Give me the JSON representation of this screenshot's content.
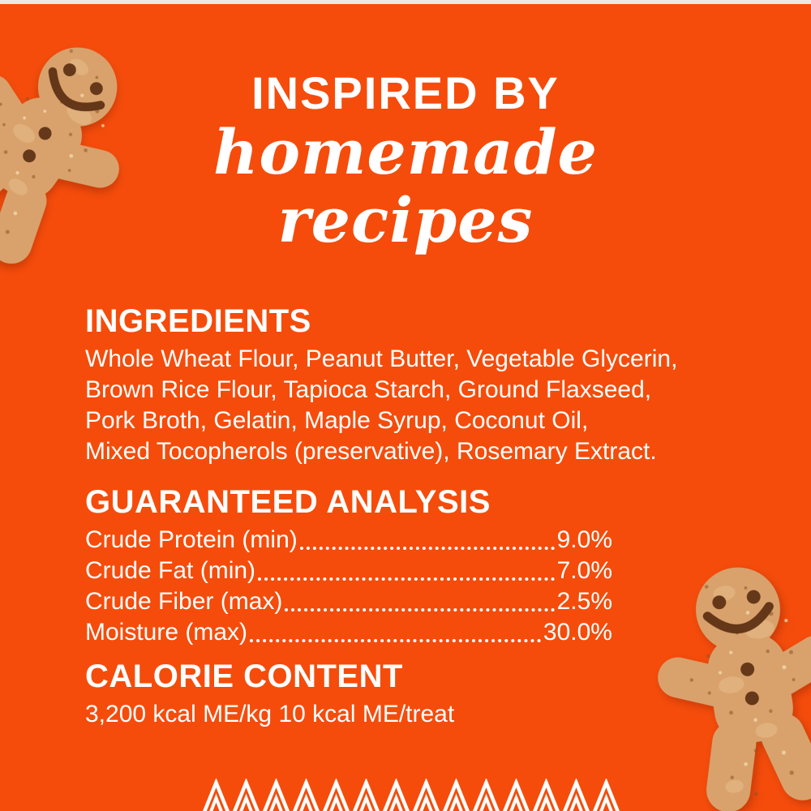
{
  "panel": {
    "background_color": "#F54C0B",
    "top_edge_color": "#ECE9E2",
    "text_color": "#FFFFFF"
  },
  "tagline": {
    "line1": "INSPIRED BY",
    "line2": "homemade",
    "line3": "recipes"
  },
  "ingredients": {
    "heading": "INGREDIENTS",
    "lines": [
      "Whole Wheat Flour, Peanut Butter, Vegetable Glycerin,",
      "Brown Rice Flour, Tapioca Starch, Ground Flaxseed,",
      "Pork Broth, Gelatin, Maple Syrup, Coconut Oil,",
      "Mixed Tocopherols (preservative), Rosemary Extract."
    ]
  },
  "guaranteed_analysis": {
    "heading": "GUARANTEED ANALYSIS",
    "rows": [
      {
        "label": "Crude Protein (min)",
        "value": "9.0%"
      },
      {
        "label": "Crude Fat (min)",
        "value": "7.0%"
      },
      {
        "label": "Crude Fiber (max)",
        "value": "2.5%"
      },
      {
        "label": "Moisture (max)",
        "value": "30.0%"
      }
    ]
  },
  "calorie_content": {
    "heading": "CALORIE CONTENT",
    "text": "3,200 kcal ME/kg 10 kcal ME/treat"
  },
  "decorations": {
    "cookie_icons": [
      "gingerbread-cookie-top-left-icon",
      "gingerbread-cookie-bottom-right-icon"
    ],
    "cookie_color": "#D9A26C",
    "cookie_detail_color": "#5A2E11",
    "zigzag": {
      "color": "#FFFFFF",
      "units": 14
    }
  }
}
